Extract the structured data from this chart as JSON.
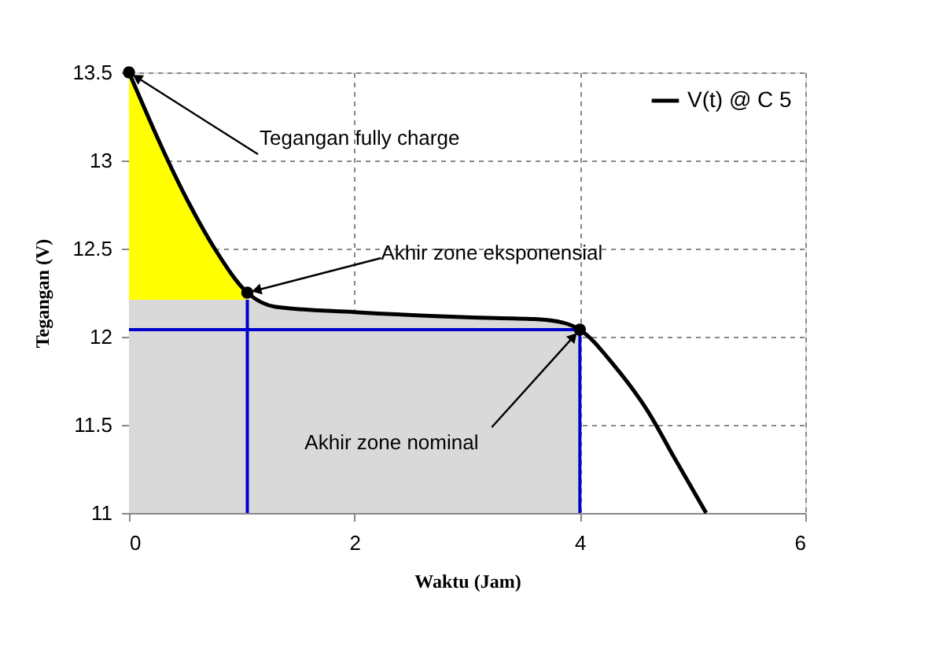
{
  "chart_data": {
    "type": "line",
    "xlabel": "Waktu (Jam)",
    "ylabel": "Tegangan (V)",
    "xlim": [
      0,
      6
    ],
    "ylim": [
      11,
      13.5
    ],
    "xticks": [
      0,
      2,
      4,
      6
    ],
    "yticks": [
      11,
      11.5,
      12,
      12.5,
      13,
      13.5
    ],
    "grid": true,
    "legend": "top right",
    "series": [
      {
        "type": "area",
        "color": "#ffff00",
        "x": [
          0,
          0.53,
          0.77,
          1.05
        ],
        "values": [
          13.5,
          12.76,
          12.49,
          12.25
        ]
      },
      {
        "type": "area",
        "color": "#d9d9d9",
        "x": [
          0,
          1.05,
          1.3,
          2,
          3,
          3.6,
          3.85,
          4
        ],
        "values": [
          12.21,
          12.21,
          12.17,
          12.14,
          12.11,
          12.1,
          12.08,
          12.04
        ]
      },
      {
        "type": "line",
        "color": "#0000cc",
        "x": [
          1.05,
          1.05
        ],
        "values": [
          11,
          12.21
        ]
      },
      {
        "type": "line",
        "color": "#0000cc",
        "x": [
          0,
          4,
          4
        ],
        "values": [
          12.04,
          12.04,
          11
        ]
      },
      {
        "name": "V(t) @ C 5",
        "color": "#000000",
        "x": [
          0,
          0.53,
          0.77,
          1.05,
          1.3,
          2,
          3,
          3.6,
          3.85,
          4,
          4.3,
          4.6,
          4.85,
          5.12
        ],
        "values": [
          13.5,
          12.76,
          12.49,
          12.25,
          12.17,
          12.14,
          12.11,
          12.1,
          12.08,
          12.04,
          11.84,
          11.58,
          11.3,
          11
        ]
      },
      {
        "type": "scatter",
        "marker": "circle",
        "color": "#000000",
        "x": [
          0,
          1.05,
          4
        ],
        "values": [
          13.5,
          12.25,
          12.04
        ]
      }
    ],
    "annotations": [
      {
        "text": "Tegangan fully charge",
        "x": 0,
        "y": 13.5
      },
      {
        "text": "Akhir zone eksponensial",
        "x": 1.05,
        "y": 12.25
      },
      {
        "text": "Akhir zone nominal",
        "x": 4,
        "y": 12.04
      }
    ]
  }
}
